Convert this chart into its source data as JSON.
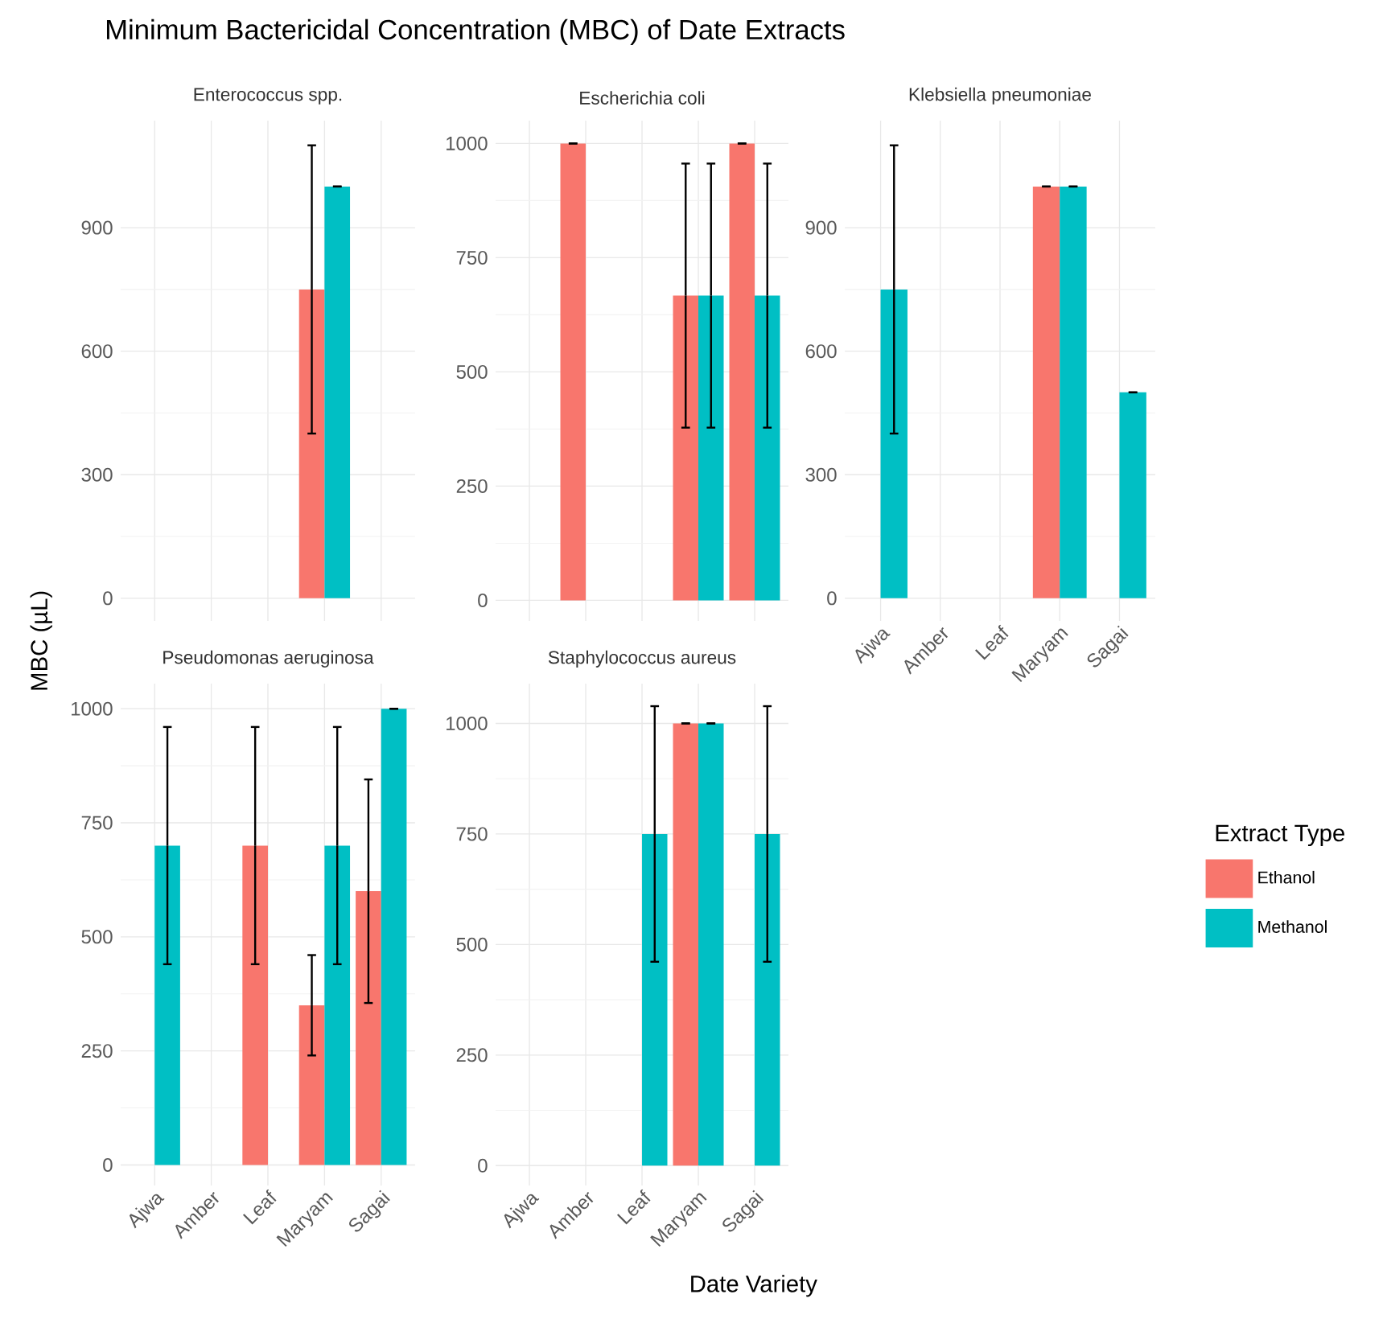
{
  "chart_data": [
    {
      "type": "bar",
      "title": "Minimum Bactericidal Concentration (MBC) of Date Extracts",
      "subtitle": "Enterococcus spp.",
      "ylabel": "MBC (µL)",
      "categories": [
        null,
        null,
        null,
        null,
        null
      ],
      "series": [
        {
          "color": "#f8766d",
          "values": [
            null,
            null,
            null,
            750,
            null
          ],
          "errors": [
            null,
            null,
            null,
            350,
            null
          ]
        },
        {
          "color": "#00bfc4",
          "values": [
            null,
            null,
            null,
            1000,
            null
          ],
          "errors": [
            null,
            null,
            null,
            0,
            null
          ]
        }
      ],
      "ylim": [
        -55,
        1160
      ],
      "yticks": [
        0,
        300,
        600,
        900
      ],
      "grid": true
    },
    {
      "type": "bar",
      "subtitle": "Escherichia coli",
      "categories": [
        null,
        null,
        null,
        null,
        null
      ],
      "series": [
        {
          "color": "#f8766d",
          "values": [
            null,
            1000,
            null,
            667,
            1000
          ],
          "errors": [
            null,
            0,
            null,
            289,
            0
          ]
        },
        {
          "color": "#00bfc4",
          "values": [
            null,
            null,
            null,
            667,
            667
          ],
          "errors": [
            null,
            null,
            null,
            289,
            289
          ]
        }
      ],
      "ylim": [
        -45,
        1050
      ],
      "yticks": [
        0,
        250,
        500,
        750,
        1000
      ],
      "grid": true
    },
    {
      "type": "bar",
      "subtitle": "Klebsiella pneumoniae",
      "legend_title": "Extract Type",
      "legend": "right",
      "categories": [
        "Ajwa",
        "Amber",
        "Leaf",
        "Maryam",
        "Sagai"
      ],
      "series": [
        {
          "name": "Ethanol",
          "color": "#f8766d",
          "values": [
            null,
            null,
            null,
            1000,
            null
          ],
          "errors": [
            null,
            null,
            null,
            0,
            null
          ]
        },
        {
          "name": "Methanol",
          "color": "#00bfc4",
          "values": [
            750,
            null,
            null,
            1000,
            500
          ],
          "errors": [
            350,
            null,
            null,
            0,
            0
          ]
        }
      ],
      "ylim": [
        -55,
        1160
      ],
      "yticks": [
        0,
        300,
        600,
        900
      ],
      "grid": true
    },
    {
      "type": "bar",
      "subtitle": "Pseudomonas aeruginosa",
      "categories": [
        "Ajwa",
        "Amber",
        "Leaf",
        "Maryam",
        "Sagai"
      ],
      "series": [
        {
          "color": "#f8766d",
          "values": [
            null,
            null,
            700,
            350,
            600
          ],
          "errors": [
            null,
            null,
            260,
            110,
            245
          ]
        },
        {
          "color": "#00bfc4",
          "values": [
            700,
            null,
            null,
            700,
            1000
          ],
          "errors": [
            260,
            null,
            null,
            260,
            0
          ]
        }
      ],
      "ylim": [
        -45,
        1055
      ],
      "yticks": [
        0,
        250,
        500,
        750,
        1000
      ],
      "grid": true
    },
    {
      "type": "bar",
      "subtitle": "Staphylococcus aureus",
      "xlabel": "Date Variety",
      "categories": [
        "Ajwa",
        "Amber",
        "Leaf",
        "Maryam",
        "Sagai"
      ],
      "series": [
        {
          "color": "#f8766d",
          "values": [
            null,
            null,
            null,
            1000,
            null
          ],
          "errors": [
            null,
            null,
            null,
            0,
            null
          ]
        },
        {
          "color": "#00bfc4",
          "values": [
            null,
            null,
            750,
            1000,
            750
          ],
          "errors": [
            null,
            null,
            289,
            0,
            289
          ]
        }
      ],
      "ylim": [
        -45,
        1090
      ],
      "yticks": [
        0,
        250,
        500,
        750,
        1000
      ],
      "grid": true
    }
  ]
}
